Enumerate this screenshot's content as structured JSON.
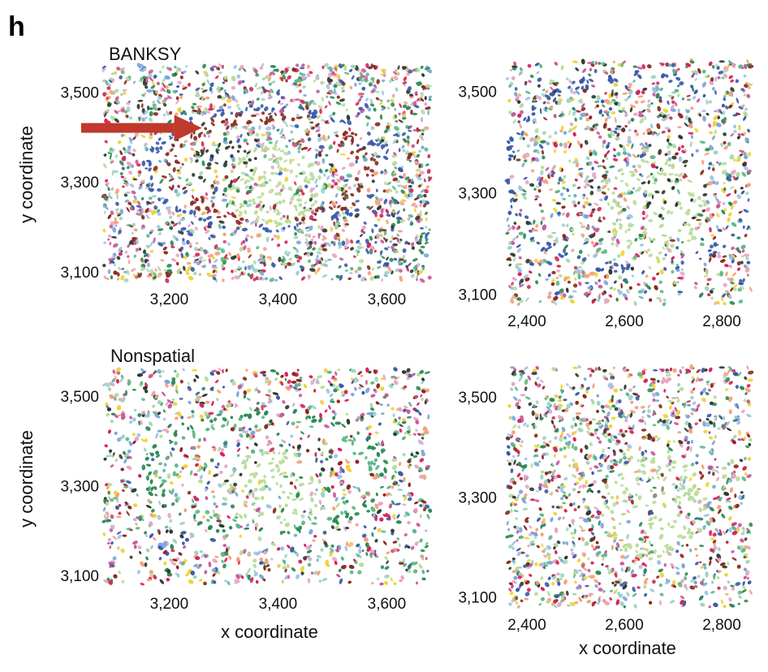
{
  "figure": {
    "panel_label": "h",
    "xlabel": "x coordinate",
    "ylabel": "y coordinate"
  },
  "palette": [
    "#3b5ba9",
    "#8b2a1f",
    "#d6265b",
    "#2e8b57",
    "#5fb88a",
    "#b9dc9a",
    "#9fd4c1",
    "#e7a6c4",
    "#f0d23a",
    "#2f3b2f",
    "#9ec3e6",
    "#f4a27a",
    "#7ba7d9",
    "#c95a9a",
    "#8f8f8f"
  ],
  "chart_data": [
    {
      "type": "scatter",
      "title": "BANKSY",
      "xlabel": "",
      "ylabel": "y coordinate",
      "xlim": [
        3080,
        3680
      ],
      "ylim": [
        3080,
        3560
      ],
      "xticks": [
        3200,
        3400,
        3600
      ],
      "xtick_labels": [
        "3,200",
        "3,400",
        "3,600"
      ],
      "yticks": [
        3100,
        3300,
        3500
      ],
      "ytick_labels": [
        "3,100",
        "3,300",
        "3,500"
      ],
      "annotation": {
        "type": "arrow",
        "color": "#c0392b",
        "from": [
          2980,
          3420
        ],
        "to": [
          3290,
          3420
        ]
      },
      "structures": [
        {
          "kind": "ring",
          "center": [
            3380,
            3330
          ],
          "radii": [
            230,
            140
          ],
          "color": "#3b5ba9",
          "inner_color": "#8b2a1f"
        },
        {
          "kind": "ring",
          "center": [
            3620,
            3165
          ],
          "radii": [
            60,
            55
          ],
          "color": "#3b5ba9",
          "inner_color": "#2e8b57"
        },
        {
          "kind": "ring",
          "center": [
            3610,
            3440
          ],
          "radii": [
            50,
            40
          ],
          "color": "#3b5ba9",
          "inner_color": "#2e8b57"
        },
        {
          "kind": "cluster",
          "center": [
            3300,
            3330
          ],
          "radius": 60,
          "color": "#2f3b2f"
        },
        {
          "kind": "cluster",
          "center": [
            3390,
            3290
          ],
          "radius": 90,
          "color": "#b9dc9a"
        }
      ]
    },
    {
      "type": "scatter",
      "title": "",
      "xlabel": "",
      "ylabel": "",
      "xlim": [
        2360,
        2860
      ],
      "ylim": [
        3080,
        3560
      ],
      "xticks": [
        2400,
        2600,
        2800
      ],
      "xtick_labels": [
        "2,400",
        "2,600",
        "2,800"
      ],
      "yticks": [
        3100,
        3300,
        3500
      ],
      "ytick_labels": [
        "3,100",
        "3,300",
        "3,500"
      ],
      "structures": [
        {
          "kind": "band",
          "center": [
            2620,
            3340
          ],
          "radii": [
            280,
            200
          ],
          "color": "#3b5ba9"
        },
        {
          "kind": "cluster",
          "center": [
            2700,
            3300
          ],
          "radius": 70,
          "color": "#2f3b2f"
        },
        {
          "kind": "cluster",
          "center": [
            2660,
            3260
          ],
          "radius": 110,
          "color": "#b9dc9a"
        }
      ]
    },
    {
      "type": "scatter",
      "title": "Nonspatial",
      "xlabel": "x coordinate",
      "ylabel": "y coordinate",
      "xlim": [
        3080,
        3680
      ],
      "ylim": [
        3080,
        3560
      ],
      "xticks": [
        3200,
        3400,
        3600
      ],
      "xtick_labels": [
        "3,200",
        "3,400",
        "3,600"
      ],
      "yticks": [
        3100,
        3300,
        3500
      ],
      "ytick_labels": [
        "3,100",
        "3,300",
        "3,500"
      ],
      "structures": [
        {
          "kind": "ring",
          "center": [
            3380,
            3330
          ],
          "radii": [
            230,
            140
          ],
          "color": "#2e8b57",
          "inner_color": "#5fb88a"
        },
        {
          "kind": "ring",
          "center": [
            3620,
            3165
          ],
          "radii": [
            60,
            55
          ],
          "color": "#2e8b57",
          "inner_color": "#5fb88a"
        },
        {
          "kind": "cluster",
          "center": [
            3390,
            3290
          ],
          "radius": 90,
          "color": "#b9dc9a"
        }
      ]
    },
    {
      "type": "scatter",
      "title": "",
      "xlabel": "x coordinate",
      "ylabel": "",
      "xlim": [
        2360,
        2860
      ],
      "ylim": [
        3080,
        3560
      ],
      "xticks": [
        2400,
        2600,
        2800
      ],
      "xtick_labels": [
        "2,400",
        "2,600",
        "2,800"
      ],
      "yticks": [
        3100,
        3300,
        3500
      ],
      "ytick_labels": [
        "3,100",
        "3,300",
        "3,500"
      ],
      "structures": [
        {
          "kind": "cluster",
          "center": [
            2660,
            3280
          ],
          "radius": 110,
          "color": "#b9dc9a"
        },
        {
          "kind": "cluster",
          "center": [
            2690,
            3290
          ],
          "radius": 30,
          "color": "#8f8f8f"
        }
      ]
    }
  ]
}
